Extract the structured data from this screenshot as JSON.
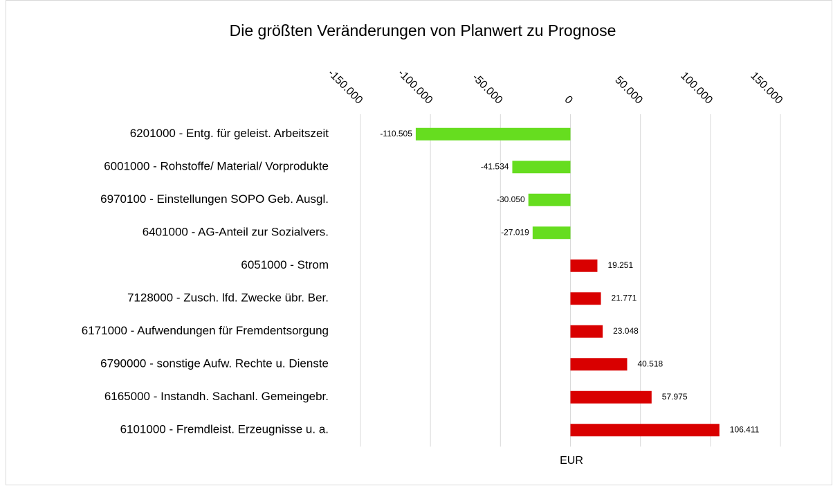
{
  "chart_data": {
    "type": "bar",
    "orientation": "horizontal",
    "title": "Die größten Veränderungen von Planwert zu Prognose",
    "x_label": "EUR",
    "categories": [
      "6201000 - Entg. für geleist. Arbeitszeit",
      "6001000 - Rohstoffe/ Material/ Vorprodukte",
      "6970100 - Einstellungen SOPO Geb. Ausgl.",
      "6401000 - AG-Anteil zur Sozialvers.",
      "6051000 - Strom",
      "7128000 - Zusch. lfd. Zwecke übr. Ber.",
      "6171000 - Aufwendungen für Fremdentsorgung",
      "6790000 - sonstige Aufw. Rechte u. Dienste",
      "6165000 - Instandh. Sachanl. Gemeingebr.",
      "6101000 - Fremdleist. Erzeugnisse u. a."
    ],
    "values": [
      -110505,
      -41534,
      -30050,
      -27019,
      19251,
      21771,
      23048,
      40518,
      57975,
      106411
    ],
    "value_labels": [
      "-110.505",
      "-41.534",
      "-30.050",
      "-27.019",
      "19.251",
      "21.771",
      "23.048",
      "40.518",
      "57.975",
      "106.411"
    ],
    "color_negative": "#66dd1f",
    "color_positive": "#d90000",
    "xlim": [
      -150000,
      150000
    ],
    "xticks": [
      {
        "value": -150000,
        "label": "-150.000"
      },
      {
        "value": -100000,
        "label": "-100.000"
      },
      {
        "value": -50000,
        "label": "-50.000"
      },
      0,
      {
        "value": 50000,
        "label": "50.000"
      },
      {
        "value": 100000,
        "label": "100.000"
      },
      {
        "value": 150000,
        "label": "150.000"
      }
    ],
    "grid": true
  }
}
